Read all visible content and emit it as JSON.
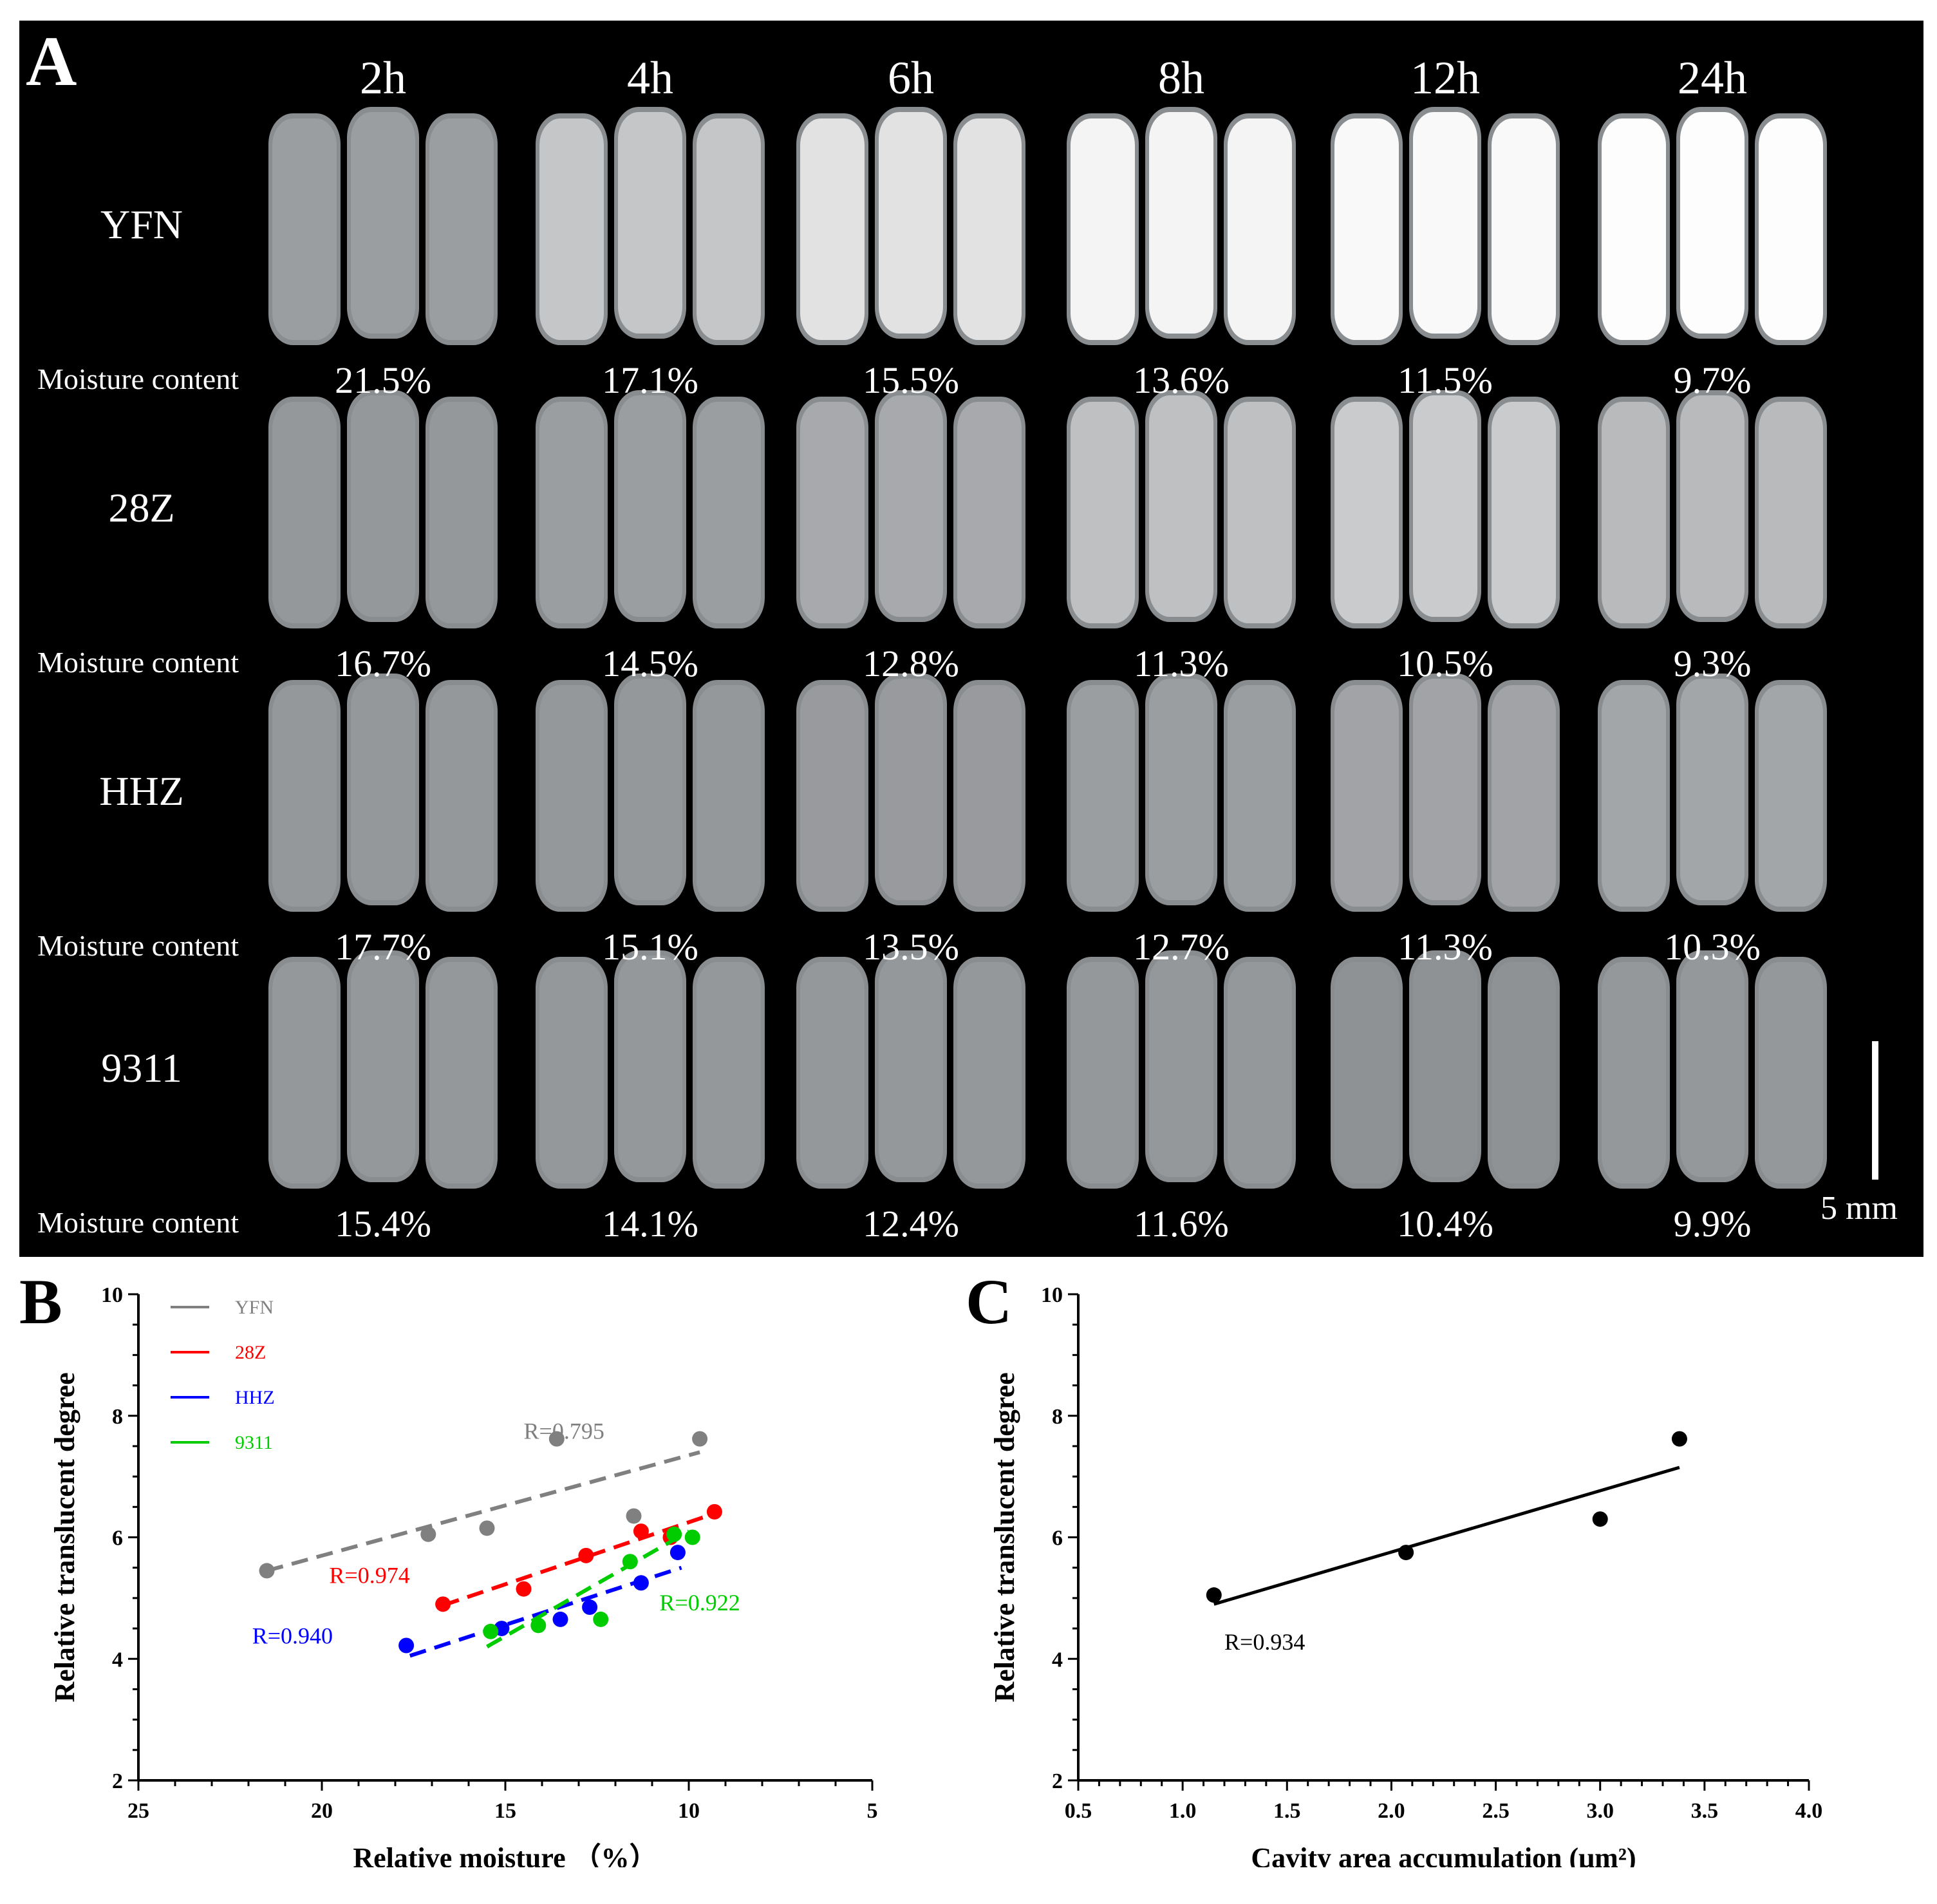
{
  "panel_a": {
    "label": "A",
    "time_points": [
      "2h",
      "4h",
      "6h",
      "8h",
      "12h",
      "24h"
    ],
    "moisture_label": "Moisture content",
    "rows": [
      {
        "variety": "YFN",
        "moisture": [
          "21.5%",
          "17.1%",
          "15.5%",
          "13.6%",
          "11.5%",
          "9.7%"
        ],
        "opacity": [
          0.15,
          0.5,
          0.75,
          0.9,
          0.95,
          0.98
        ]
      },
      {
        "variety": "28Z",
        "moisture": [
          "16.7%",
          "14.5%",
          "12.8%",
          "11.3%",
          "10.5%",
          "9.3%"
        ],
        "opacity": [
          0.1,
          0.15,
          0.25,
          0.45,
          0.55,
          0.4
        ]
      },
      {
        "variety": "HHZ",
        "moisture": [
          "17.7%",
          "15.1%",
          "13.5%",
          "12.7%",
          "11.3%",
          "10.3%"
        ],
        "opacity": [
          0.1,
          0.1,
          0.12,
          0.15,
          0.2,
          0.22
        ]
      },
      {
        "variety": "9311",
        "moisture": [
          "15.4%",
          "14.1%",
          "12.4%",
          "11.6%",
          "10.4%",
          "9.9%"
        ],
        "opacity": [
          0.1,
          0.1,
          0.1,
          0.1,
          0.05,
          0.1
        ]
      }
    ],
    "scale_bar": "5 mm"
  },
  "chart_data": [
    {
      "panel_label": "B",
      "type": "scatter",
      "xlabel": "Relative moisture （%）",
      "ylabel": "Relative translucent degree",
      "xlim": [
        25,
        5
      ],
      "ylim": [
        2,
        10
      ],
      "x_ticks": [
        25,
        20,
        15,
        10,
        5
      ],
      "y_ticks": [
        2,
        4,
        6,
        8,
        10
      ],
      "legend_position": "top-left",
      "series": [
        {
          "name": "YFN",
          "color": "#808080",
          "x": [
            21.5,
            17.1,
            15.5,
            13.6,
            11.5,
            9.7
          ],
          "y": [
            5.45,
            6.05,
            6.15,
            7.62,
            6.35,
            7.62
          ],
          "fit": [
            [
              21.5,
              5.45
            ],
            [
              9.7,
              7.4
            ]
          ],
          "r_label": "R=0.795"
        },
        {
          "name": "28Z",
          "color": "#ff0000",
          "x": [
            16.7,
            14.5,
            12.8,
            11.3,
            10.5,
            9.3
          ],
          "y": [
            4.9,
            5.15,
            5.7,
            6.1,
            6.0,
            6.42
          ],
          "fit": [
            [
              16.7,
              4.88
            ],
            [
              9.5,
              6.35
            ]
          ],
          "r_label": "R=0.974"
        },
        {
          "name": "HHZ",
          "color": "#0000ff",
          "x": [
            17.7,
            15.1,
            13.5,
            12.7,
            11.3,
            10.3
          ],
          "y": [
            4.22,
            4.5,
            4.65,
            4.85,
            5.25,
            5.75
          ],
          "fit": [
            [
              17.6,
              4.05
            ],
            [
              10.2,
              5.5
            ]
          ],
          "r_label": "R=0.940"
        },
        {
          "name": "9311",
          "color": "#00cc00",
          "x": [
            15.4,
            14.1,
            12.4,
            11.6,
            10.4,
            9.9
          ],
          "y": [
            4.45,
            4.55,
            4.65,
            5.6,
            6.05,
            6.0
          ],
          "fit": [
            [
              15.5,
              4.2
            ],
            [
              10.0,
              6.1
            ]
          ],
          "r_label": "R=0.922"
        }
      ]
    },
    {
      "panel_label": "C",
      "type": "scatter",
      "xlabel": "Cavity area accumulation (μm²)",
      "ylabel": "Relative translucent degree",
      "xlim": [
        0.5,
        4.0
      ],
      "ylim": [
        2,
        10
      ],
      "x_ticks": [
        0.5,
        1.0,
        1.5,
        2.0,
        2.5,
        3.0,
        3.5,
        4.0
      ],
      "y_ticks": [
        2,
        4,
        6,
        8,
        10
      ],
      "series": [
        {
          "color": "#000000",
          "x": [
            1.15,
            2.07,
            3.0,
            3.38
          ],
          "y": [
            5.05,
            5.75,
            6.3,
            7.62
          ],
          "fit": [
            [
              1.15,
              4.9
            ],
            [
              3.38,
              7.15
            ]
          ],
          "r_label": "R=0.934"
        }
      ]
    }
  ]
}
